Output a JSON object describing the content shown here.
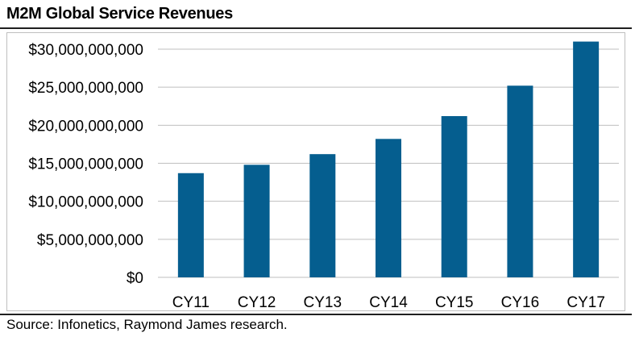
{
  "chart_data": {
    "type": "bar",
    "title": "M2M Global Service Revenues",
    "categories": [
      "CY11",
      "CY12",
      "CY13",
      "CY14",
      "CY15",
      "CY16",
      "CY17"
    ],
    "values": [
      13700000000,
      14800000000,
      16200000000,
      18200000000,
      21200000000,
      25200000000,
      31000000000
    ],
    "yticks": [
      "$0",
      "$5,000,000,000",
      "$10,000,000,000",
      "$15,000,000,000",
      "$20,000,000,000",
      "$25,000,000,000",
      "$30,000,000,000"
    ],
    "ylim": [
      0,
      30000000000
    ],
    "grid": true,
    "legend": "none",
    "bar_color": "#055e8f",
    "grid_color": "#bfbfbf"
  },
  "source": "Source: Infonetics, Raymond James research."
}
